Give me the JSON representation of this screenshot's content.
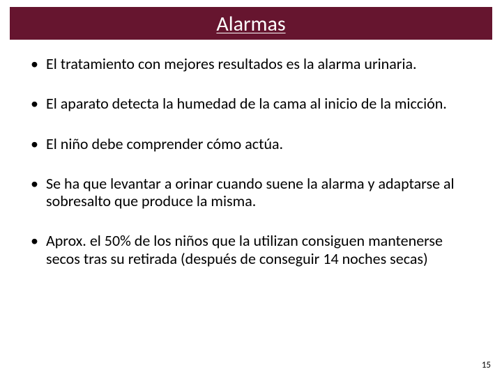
{
  "slide": {
    "title": "Alarmas",
    "title_bar_color": "#66152f",
    "title_text_color": "#ffffff",
    "background_color": "#ffffff",
    "body_text_color": "#000000",
    "title_fontsize": 30,
    "body_fontsize": 22,
    "bullets": [
      "El tratamiento con mejores resultados es la alarma urinaria.",
      "El aparato detecta la humedad de la cama al inicio de la micción.",
      "El niño debe comprender cómo actúa.",
      "Se ha que levantar a orinar cuando suene la alarma y adaptarse al sobresalto que produce la misma.",
      "Aprox. el 50% de los niños que la utilizan consiguen mantenerse secos tras su retirada (después de conseguir 14 noches secas)"
    ],
    "page_number": "15"
  }
}
